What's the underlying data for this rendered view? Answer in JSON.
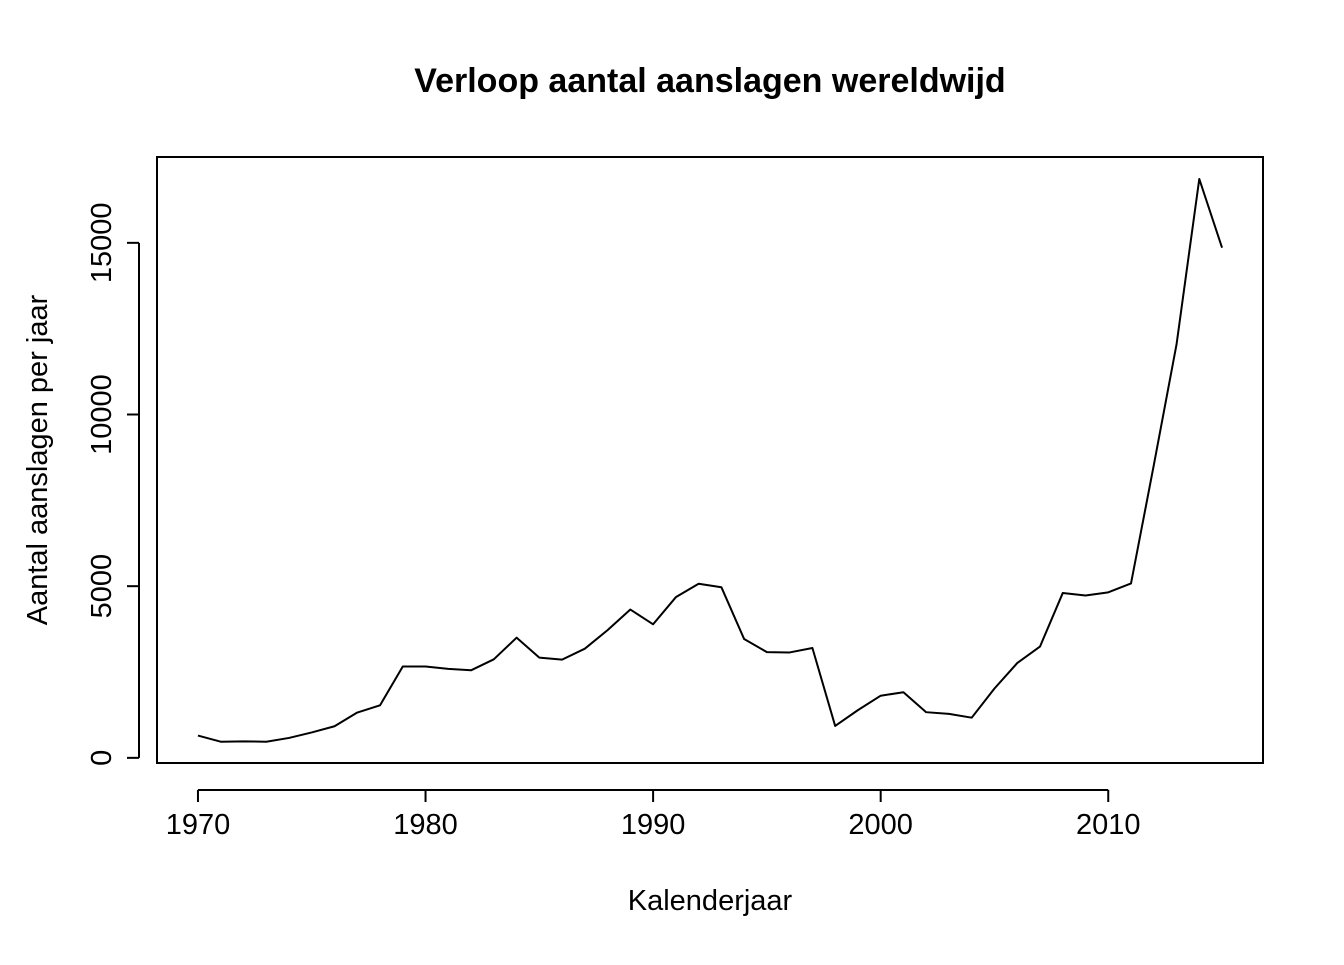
{
  "chart_data": {
    "type": "line",
    "title": "Verloop aantal aanslagen wereldwijd",
    "xlabel": "Kalenderjaar",
    "ylabel": "Aantal aanslagen per jaar",
    "xlim": [
      1968.2,
      2016.8
    ],
    "ylim": [
      -150,
      17500
    ],
    "x_ticks": [
      1970,
      1980,
      1990,
      2000,
      2010
    ],
    "y_ticks": [
      0,
      5000,
      10000,
      15000
    ],
    "grid": false,
    "legend": "none",
    "line_color": "#000000",
    "series": [
      {
        "x": [
          1970,
          1971,
          1972,
          1973,
          1974,
          1975,
          1976,
          1977,
          1978,
          1979,
          1980,
          1981,
          1982,
          1983,
          1984,
          1985,
          1986,
          1987,
          1988,
          1989,
          1990,
          1991,
          1992,
          1993,
          1994,
          1995,
          1996,
          1997,
          1998,
          1999,
          2000,
          2001,
          2002,
          2003,
          2004,
          2005,
          2006,
          2007,
          2008,
          2009,
          2010,
          2011,
          2012,
          2013,
          2014,
          2015
        ],
        "y": [
          650,
          470,
          480,
          470,
          580,
          740,
          920,
          1320,
          1530,
          2660,
          2660,
          2590,
          2550,
          2870,
          3500,
          2920,
          2860,
          3180,
          3720,
          4320,
          3890,
          4680,
          5070,
          4970,
          3460,
          3080,
          3070,
          3200,
          930,
          1390,
          1810,
          1910,
          1330,
          1280,
          1170,
          2020,
          2760,
          3240,
          4800,
          4730,
          4820,
          5080,
          8520,
          12040,
          16860,
          14860
        ]
      }
    ]
  }
}
